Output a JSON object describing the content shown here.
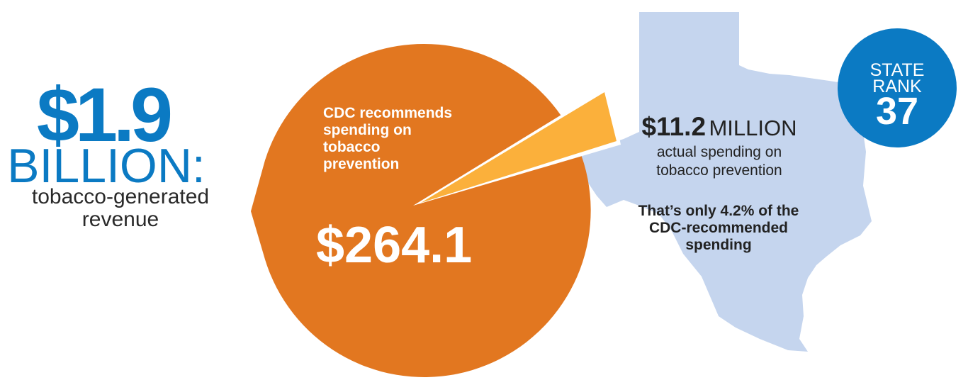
{
  "revenue": {
    "amount": "$1.9",
    "unit": "BILLION:",
    "description_line1": "tobacco-generated",
    "description_line2": "revenue"
  },
  "cdc_recommendation": {
    "label_line1": "CDC recommends",
    "label_line2": "spending on",
    "label_line3": "tobacco",
    "label_line4": "prevention",
    "amount": "$264.1"
  },
  "actual_spending": {
    "amount": "$11.2",
    "unit": "MILLION",
    "description_line1": "actual spending on",
    "description_line2": "tobacco prevention",
    "note_line1": "That’s only 4.2% of the",
    "note_line2": "CDC-recommended",
    "note_line3": "spending",
    "percent_of_recommended": 4.2
  },
  "state_rank": {
    "label_line1": "STATE",
    "label_line2": "RANK",
    "value": "37"
  },
  "colors": {
    "revenue_blue": "#0b7ac3",
    "recommended_orange": "#e27720",
    "actual_slice_yellow": "#fbb03b",
    "state_fill": "#c5d5ee",
    "rank_badge_blue": "#0b7ac3",
    "text_dark": "#222222"
  },
  "icons": {
    "state_shape": "texas-state-outline",
    "rank_badge": "circle-badge"
  }
}
